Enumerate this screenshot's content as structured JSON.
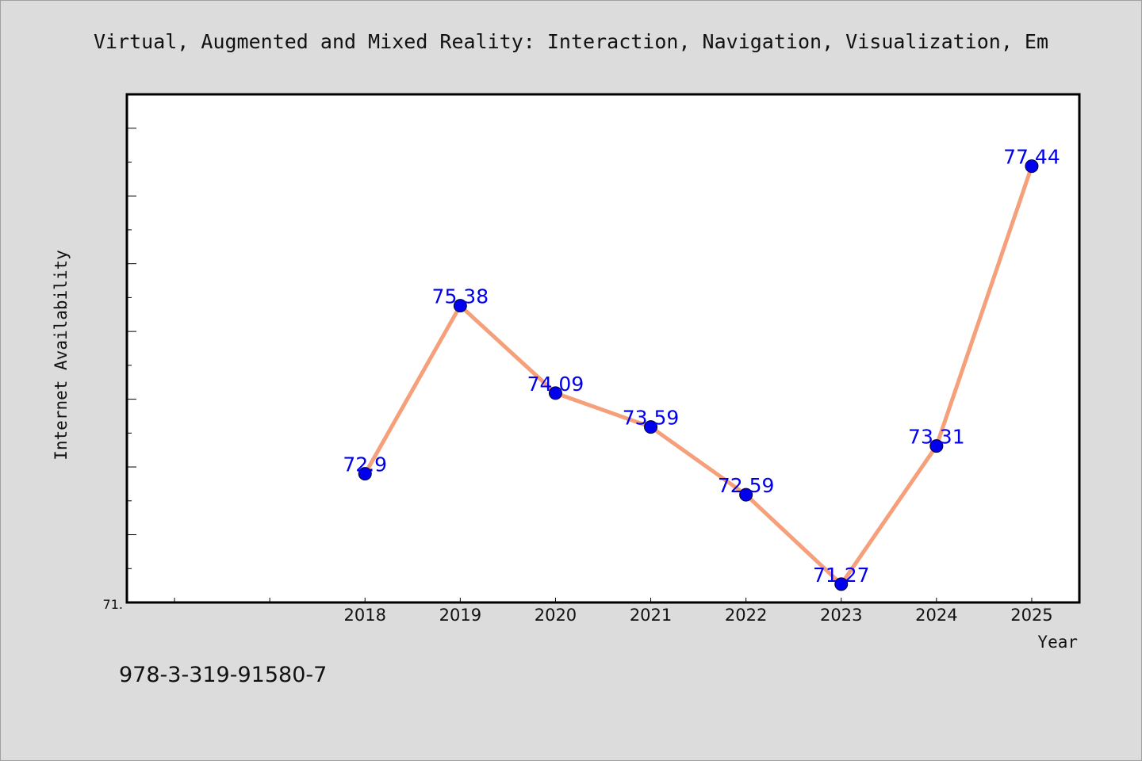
{
  "footnote": "978-3-319-91580-7",
  "chart_data": {
    "type": "line",
    "title": "Virtual, Augmented and Mixed Reality: Interaction, Navigation, Visualization, Em",
    "xlabel": "Year",
    "ylabel": "Internet Availability",
    "x": [
      "2018",
      "2019",
      "2020",
      "2021",
      "2022",
      "2023",
      "2024",
      "2025"
    ],
    "series": [
      {
        "values": [
          72.9,
          75.38,
          74.09,
          73.59,
          72.59,
          71.27,
          73.31,
          77.44
        ],
        "labels": [
          "72.9",
          "75.38",
          "74.09",
          "73.59",
          "72.59",
          "71.27",
          "73.31",
          "77.44"
        ]
      }
    ],
    "ytick_label": "71.",
    "ylim": [
      71.0,
      78.5
    ],
    "xlim": [
      2015.5,
      2025.5
    ],
    "grid": false,
    "legend": "none",
    "colors": {
      "line": "#f5a07a",
      "marker": "#0000ee",
      "data_label": "#0000ee",
      "plot_background": "#ffffff",
      "figure_background": "#dcdcdc"
    }
  }
}
